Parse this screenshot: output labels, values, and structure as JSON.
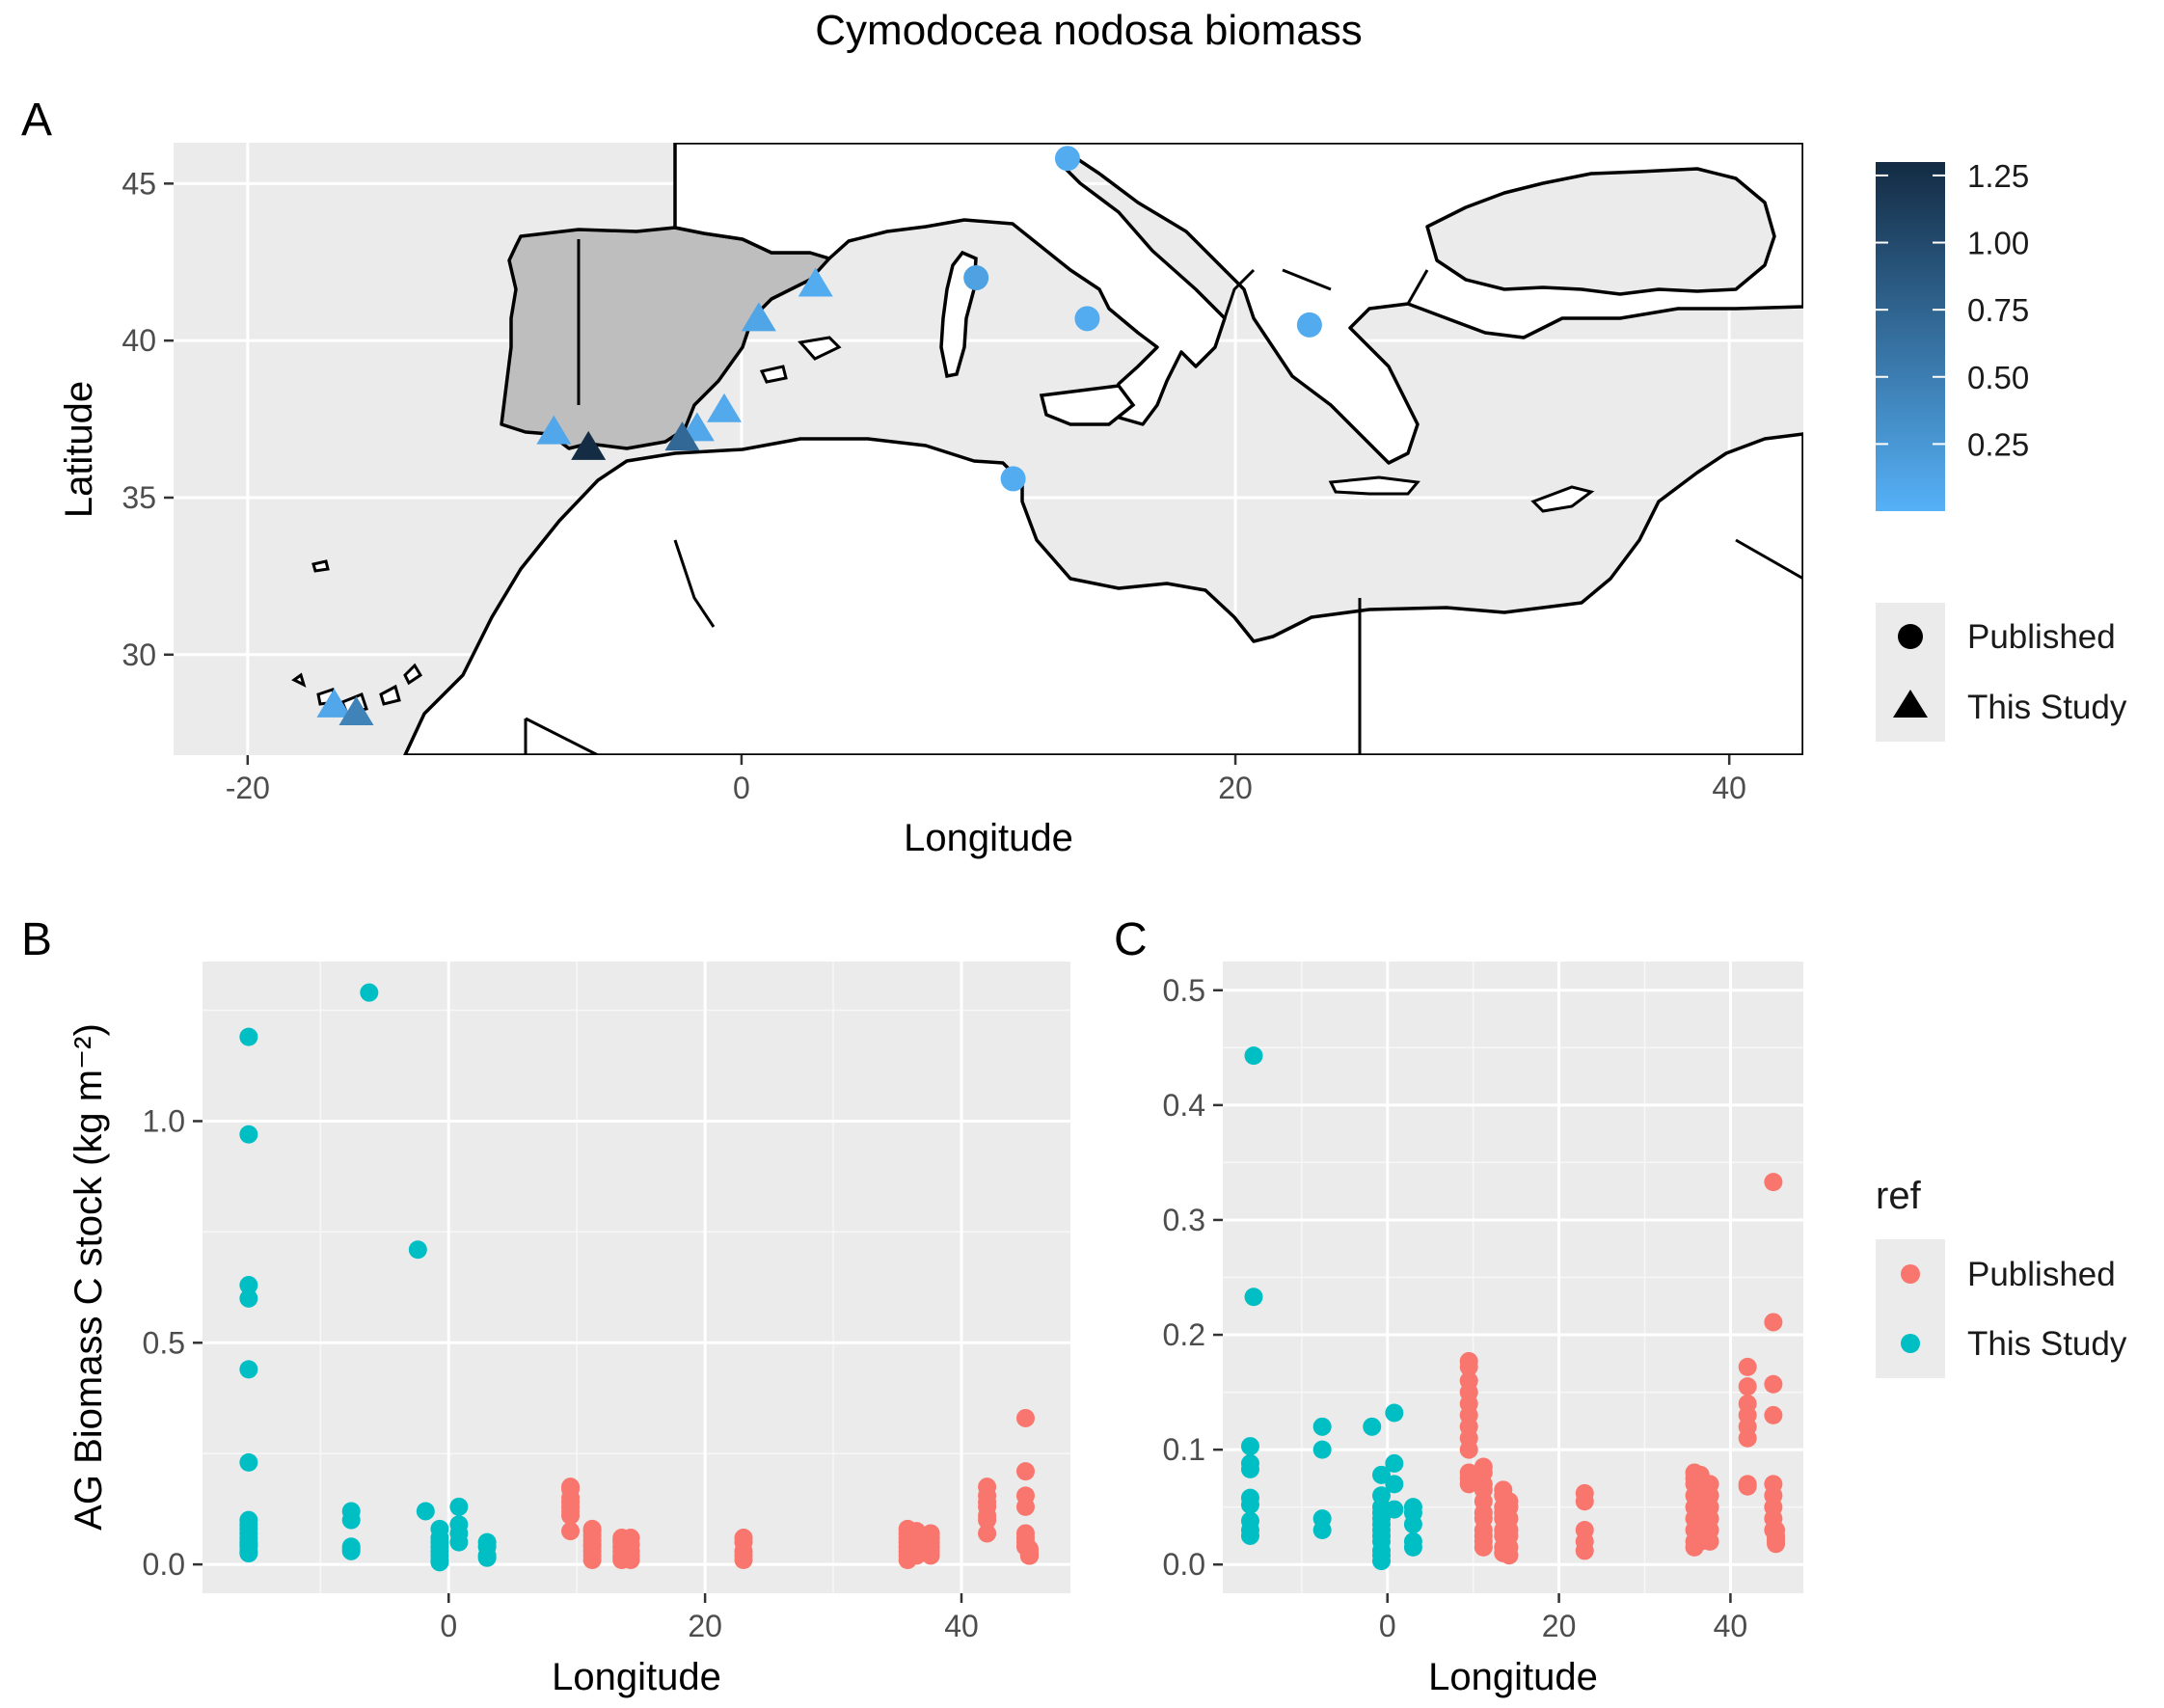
{
  "figure": {
    "title": "Cymodocea nodosa biomass",
    "legend_gradient": {
      "ticks": [
        "1.25",
        "1.00",
        "0.75",
        "0.50",
        "0.25"
      ],
      "tick_values": [
        1.25,
        1.0,
        0.75,
        0.5,
        0.25
      ],
      "range": [
        0.0,
        1.3
      ],
      "low_color": "#56b1f7",
      "high_color": "#132b43"
    },
    "legend_shape": {
      "items": [
        {
          "label": "Published",
          "shape": "circle"
        },
        {
          "label": "This Study",
          "shape": "triangle"
        }
      ]
    },
    "legend_ref": {
      "title": "ref",
      "items": [
        {
          "label": "Published",
          "color": "#f8766d"
        },
        {
          "label": "This Study",
          "color": "#00bfc4"
        }
      ]
    }
  },
  "chart_data": [
    {
      "panel": "A",
      "type": "scatter",
      "subtype": "map",
      "xlabel": "Longitude",
      "ylabel": "Latitude",
      "xlim": [
        -23,
        43
      ],
      "ylim": [
        26.8,
        46.3
      ],
      "xticks": [
        -20,
        0,
        20,
        40
      ],
      "yticks": [
        30,
        35,
        40,
        45
      ],
      "highlighted_region": "Iberian Peninsula",
      "colors": {
        "panel_bg": "#ebebeb",
        "grid": "#ffffff",
        "land_highlight": "#bebebe",
        "coast": "#000000"
      },
      "points": [
        {
          "x": 13.2,
          "y": 45.8,
          "v": 0.05,
          "shape": "circle"
        },
        {
          "x": 9.5,
          "y": 42.0,
          "v": 0.15,
          "shape": "circle"
        },
        {
          "x": 14.0,
          "y": 40.7,
          "v": 0.05,
          "shape": "circle"
        },
        {
          "x": 23.0,
          "y": 40.5,
          "v": 0.06,
          "shape": "circle"
        },
        {
          "x": 11.0,
          "y": 35.6,
          "v": 0.05,
          "shape": "circle"
        },
        {
          "x": 3.0,
          "y": 41.8,
          "v": 0.05,
          "shape": "triangle"
        },
        {
          "x": 0.7,
          "y": 40.7,
          "v": 0.12,
          "shape": "triangle"
        },
        {
          "x": -0.7,
          "y": 37.8,
          "v": 0.08,
          "shape": "triangle"
        },
        {
          "x": -1.8,
          "y": 37.2,
          "v": 0.1,
          "shape": "triangle"
        },
        {
          "x": -2.4,
          "y": 36.9,
          "v": 0.71,
          "shape": "triangle"
        },
        {
          "x": -7.6,
          "y": 37.1,
          "v": 0.1,
          "shape": "triangle"
        },
        {
          "x": -6.2,
          "y": 36.6,
          "v": 1.29,
          "shape": "triangle"
        },
        {
          "x": -16.5,
          "y": 28.4,
          "v": 0.1,
          "shape": "triangle"
        },
        {
          "x": -15.6,
          "y": 28.15,
          "v": 0.45,
          "shape": "triangle"
        }
      ]
    },
    {
      "panel": "B",
      "type": "scatter",
      "xlabel": "Longitude",
      "ylabel": "AG Biomass C stock (kg m⁻²)",
      "xlim": [
        -19.2,
        48.5
      ],
      "ylim": [
        -0.065,
        1.36
      ],
      "xticks": [
        0,
        20,
        40
      ],
      "yticks": [
        0.0,
        0.5,
        1.0
      ],
      "ytick_labels": [
        "0.0",
        "0.5",
        "1.0"
      ],
      "series": [
        {
          "name": "This Study",
          "color": "#00bfc4",
          "x": [
            -15.6,
            -15.6,
            -15.6,
            -15.6,
            -15.6,
            -15.6,
            -15.6,
            -15.6,
            -15.6,
            -15.6,
            -15.6,
            -15.6,
            -15.6,
            -15.6,
            -15.6,
            -15.6,
            -6.2,
            -2.4,
            -7.6,
            -7.6,
            -7.6,
            -7.6,
            -7.6,
            -1.8,
            -0.7,
            -0.7,
            -0.7,
            -0.7,
            -0.7,
            -0.7,
            -0.7,
            -0.7,
            0.8,
            0.8,
            0.8,
            0.8,
            3.0,
            3.0,
            3.0,
            3.0
          ],
          "y": [
            1.19,
            0.97,
            0.63,
            0.6,
            0.44,
            0.23,
            0.1,
            0.09,
            0.08,
            0.07,
            0.06,
            0.05,
            0.045,
            0.04,
            0.03,
            0.025,
            1.29,
            0.71,
            0.12,
            0.1,
            0.04,
            0.035,
            0.03,
            0.12,
            0.08,
            0.06,
            0.05,
            0.04,
            0.03,
            0.02,
            0.01,
            0.005,
            0.13,
            0.09,
            0.07,
            0.05,
            0.05,
            0.04,
            0.02,
            0.015
          ]
        },
        {
          "name": "Published",
          "color": "#f8766d",
          "x": [
            9.5,
            9.5,
            9.5,
            9.5,
            9.5,
            9.5,
            9.5,
            9.5,
            11.2,
            11.2,
            11.2,
            11.2,
            11.2,
            11.2,
            11.2,
            11.2,
            11.2,
            13.5,
            13.5,
            13.5,
            13.5,
            13.5,
            13.5,
            13.5,
            13.5,
            14.2,
            14.2,
            14.2,
            14.2,
            14.2,
            23.0,
            23.0,
            23.0,
            23.0,
            23.0,
            35.8,
            35.8,
            35.8,
            35.8,
            35.8,
            35.8,
            35.8,
            35.8,
            36.5,
            36.5,
            36.5,
            36.5,
            36.5,
            36.5,
            37.6,
            37.6,
            37.6,
            37.6,
            37.6,
            37.6,
            42.0,
            42.0,
            42.0,
            42.0,
            42.0,
            42.0,
            42.0,
            45.0,
            45.0,
            45.0,
            45.0,
            45.0,
            45.0,
            45.0,
            45.0,
            45.3,
            45.3,
            45.3,
            45.3,
            45.3,
            45.3,
            45.3,
            45.3,
            45.3,
            45.3,
            45.3,
            45.3,
            45.3,
            45.3,
            45.3,
            45.3,
            45.3,
            45.3,
            45.3,
            45.3,
            45.3,
            45.3,
            45.3,
            45.3,
            45.3,
            45.3,
            45.3,
            45.3,
            45.3,
            45.3,
            45.3,
            45.3,
            45.3,
            45.3,
            45.3,
            45.3,
            45.3,
            45.3,
            45.3,
            45.3
          ],
          "y": [
            0.175,
            0.17,
            0.15,
            0.14,
            0.13,
            0.12,
            0.11,
            0.075,
            0.08,
            0.075,
            0.065,
            0.055,
            0.045,
            0.04,
            0.03,
            0.02,
            0.01,
            0.06,
            0.055,
            0.05,
            0.04,
            0.03,
            0.02,
            0.015,
            0.01,
            0.06,
            0.045,
            0.03,
            0.02,
            0.01,
            0.06,
            0.05,
            0.03,
            0.02,
            0.01,
            0.08,
            0.07,
            0.06,
            0.05,
            0.04,
            0.03,
            0.02,
            0.01,
            0.075,
            0.065,
            0.05,
            0.04,
            0.03,
            0.02,
            0.07,
            0.06,
            0.05,
            0.04,
            0.03,
            0.02,
            0.175,
            0.155,
            0.14,
            0.13,
            0.11,
            0.1,
            0.07,
            0.33,
            0.21,
            0.155,
            0.13,
            0.07,
            0.06,
            0.05,
            0.04,
            0.035,
            0.03,
            0.025,
            0.02,
            0.02,
            0.02,
            0.02,
            0.02,
            0.02,
            0.02,
            0.02,
            0.02,
            0.02,
            0.02,
            0.02,
            0.02,
            0.02,
            0.02,
            0.02,
            0.02,
            0.02,
            0.02,
            0.02,
            0.02,
            0.02,
            0.02,
            0.02,
            0.02,
            0.02,
            0.02,
            0.02,
            0.02,
            0.02,
            0.02,
            0.02,
            0.02,
            0.02,
            0.02,
            0.02,
            0.02
          ]
        }
      ]
    },
    {
      "panel": "C",
      "type": "scatter",
      "xlabel": "Longitude",
      "ylabel": "",
      "xlim": [
        -19.2,
        48.5
      ],
      "ylim": [
        -0.025,
        0.525
      ],
      "xticks": [
        0,
        20,
        40
      ],
      "yticks": [
        0.0,
        0.1,
        0.2,
        0.3,
        0.4,
        0.5
      ],
      "ytick_labels": [
        "0.0",
        "0.1",
        "0.2",
        "0.3",
        "0.4",
        "0.5"
      ],
      "series": [
        {
          "name": "This Study",
          "color": "#00bfc4",
          "x": [
            -15.6,
            -15.6,
            -16.0,
            -16.0,
            -16.0,
            -16.0,
            -16.0,
            -16.0,
            -16.0,
            -16.0,
            -7.6,
            -7.6,
            -7.6,
            -7.6,
            -1.8,
            -0.7,
            -0.7,
            -0.7,
            -0.7,
            -0.7,
            -0.7,
            -0.7,
            -0.7,
            -0.7,
            -0.7,
            -0.7,
            -0.7,
            0.8,
            0.8,
            0.8,
            0.8,
            3.0,
            3.0,
            3.0,
            3.0,
            3.0
          ],
          "y": [
            0.443,
            0.233,
            0.103,
            0.088,
            0.083,
            0.058,
            0.052,
            0.038,
            0.03,
            0.025,
            0.12,
            0.1,
            0.04,
            0.03,
            0.12,
            0.078,
            0.06,
            0.05,
            0.045,
            0.04,
            0.035,
            0.03,
            0.025,
            0.02,
            0.012,
            0.008,
            0.003,
            0.132,
            0.088,
            0.07,
            0.048,
            0.05,
            0.045,
            0.035,
            0.02,
            0.015
          ]
        },
        {
          "name": "Published",
          "color": "#f8766d",
          "x": [
            9.5,
            9.5,
            9.5,
            9.5,
            9.5,
            9.5,
            9.5,
            9.5,
            9.5,
            9.5,
            9.5,
            9.5,
            11.2,
            11.2,
            11.2,
            11.2,
            11.2,
            11.2,
            11.2,
            11.2,
            11.2,
            11.2,
            11.2,
            13.5,
            13.5,
            13.5,
            13.5,
            13.5,
            13.5,
            13.5,
            13.5,
            13.5,
            14.2,
            14.2,
            14.2,
            14.2,
            14.2,
            14.2,
            14.2,
            23.0,
            23.0,
            23.0,
            23.0,
            23.0,
            35.8,
            35.8,
            35.8,
            35.8,
            35.8,
            35.8,
            35.8,
            35.8,
            35.8,
            36.5,
            36.5,
            36.5,
            36.5,
            36.5,
            36.5,
            37.6,
            37.6,
            37.6,
            37.6,
            37.6,
            37.6,
            42.0,
            42.0,
            42.0,
            42.0,
            42.0,
            42.0,
            42.0,
            42.0,
            45.0,
            45.0,
            45.0,
            45.0,
            45.0,
            45.0,
            45.0,
            45.0,
            45.0,
            45.3,
            45.3,
            45.3,
            45.3,
            45.3
          ],
          "y": [
            0.177,
            0.172,
            0.16,
            0.15,
            0.14,
            0.13,
            0.12,
            0.11,
            0.1,
            0.08,
            0.075,
            0.07,
            0.085,
            0.08,
            0.07,
            0.065,
            0.055,
            0.045,
            0.04,
            0.03,
            0.025,
            0.02,
            0.015,
            0.065,
            0.06,
            0.05,
            0.045,
            0.04,
            0.03,
            0.025,
            0.015,
            0.01,
            0.055,
            0.05,
            0.04,
            0.03,
            0.025,
            0.015,
            0.008,
            0.062,
            0.055,
            0.03,
            0.02,
            0.012,
            0.08,
            0.075,
            0.07,
            0.06,
            0.05,
            0.04,
            0.03,
            0.02,
            0.015,
            0.078,
            0.065,
            0.05,
            0.04,
            0.03,
            0.02,
            0.07,
            0.06,
            0.05,
            0.04,
            0.03,
            0.02,
            0.172,
            0.155,
            0.14,
            0.13,
            0.12,
            0.11,
            0.07,
            0.068,
            0.333,
            0.211,
            0.157,
            0.13,
            0.07,
            0.06,
            0.05,
            0.04,
            0.03,
            0.03,
            0.025,
            0.022,
            0.02,
            0.018
          ]
        }
      ]
    }
  ]
}
